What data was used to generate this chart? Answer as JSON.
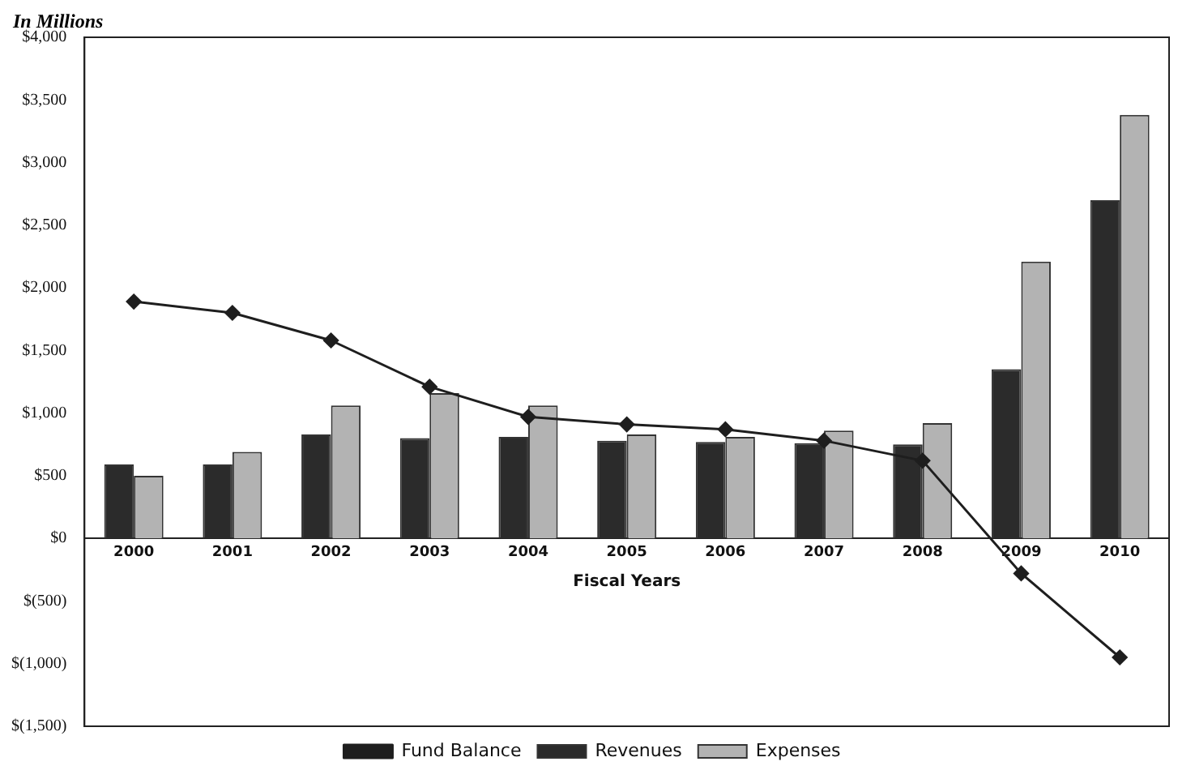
{
  "chart_data": {
    "type": "bar",
    "title": "In Millions",
    "xlabel": "Fiscal Years",
    "categories": [
      "2000",
      "2001",
      "2002",
      "2003",
      "2004",
      "2005",
      "2006",
      "2007",
      "2008",
      "2009",
      "2010"
    ],
    "series": [
      {
        "name": "Revenues",
        "color": "#2b2b2b",
        "values": [
          590,
          590,
          830,
          800,
          810,
          780,
          770,
          760,
          750,
          1350,
          2700
        ]
      },
      {
        "name": "Expenses",
        "color": "#b3b3b3",
        "values": [
          500,
          690,
          1060,
          1160,
          1060,
          830,
          810,
          860,
          920,
          2210,
          3380
        ]
      },
      {
        "name": "Fund Balance",
        "type": "line",
        "color": "#1e1e1e",
        "marker": "diamond",
        "values": [
          1890,
          1800,
          1580,
          1210,
          970,
          910,
          870,
          780,
          620,
          -280,
          -950
        ]
      }
    ],
    "ylim": [
      -1500,
      4000
    ],
    "yticks": [
      {
        "value": -1500,
        "label": "$(1,500)"
      },
      {
        "value": -1000,
        "label": "$(1,000)"
      },
      {
        "value": -500,
        "label": "$(500)"
      },
      {
        "value": 0,
        "label": "$0"
      },
      {
        "value": 500,
        "label": "$500"
      },
      {
        "value": 1000,
        "label": "$1,000"
      },
      {
        "value": 1500,
        "label": "$1,500"
      },
      {
        "value": 2000,
        "label": "$2,000"
      },
      {
        "value": 2500,
        "label": "$2,500"
      },
      {
        "value": 3000,
        "label": "$3,000"
      },
      {
        "value": 3500,
        "label": "$3,500"
      },
      {
        "value": 4000,
        "label": "$4,000"
      }
    ],
    "grid": false,
    "legend": "bottom"
  }
}
